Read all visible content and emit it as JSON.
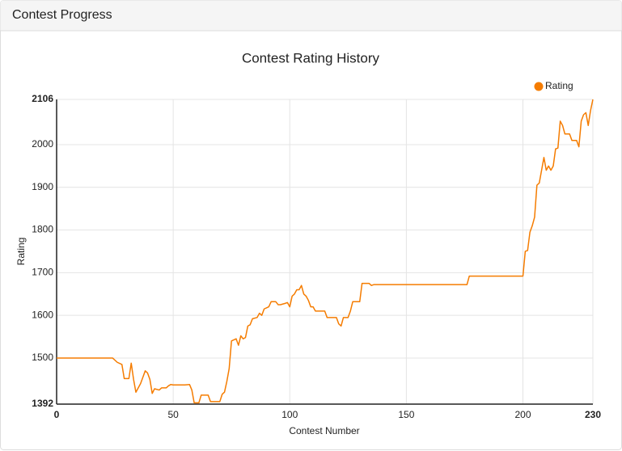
{
  "header": {
    "title": "Contest Progress"
  },
  "chart_data": {
    "type": "line",
    "title": "Contest Rating History",
    "x_label": "Contest Number",
    "y_label": "Rating",
    "x": [
      0,
      24,
      26,
      28,
      29,
      31,
      32,
      33,
      34,
      36,
      37,
      38,
      39,
      40,
      41,
      42,
      44,
      45,
      47,
      48,
      49,
      50,
      55,
      57,
      58,
      59,
      61,
      62,
      65,
      66,
      70,
      71,
      72,
      73,
      74,
      75,
      77,
      78,
      79,
      80,
      81,
      82,
      83,
      84,
      86,
      87,
      88,
      89,
      91,
      92,
      94,
      95,
      96,
      98,
      99,
      100,
      101,
      102,
      103,
      104,
      105,
      106,
      107,
      108,
      109,
      110,
      111,
      115,
      116,
      120,
      121,
      122,
      123,
      125,
      126,
      127,
      130,
      131,
      134,
      135,
      136,
      176,
      177,
      200,
      201,
      202,
      203,
      204,
      205,
      206,
      207,
      208,
      209,
      210,
      211,
      212,
      213,
      214,
      215,
      216,
      217,
      218,
      220,
      221,
      223,
      224,
      225,
      226,
      227,
      228,
      229,
      230
    ],
    "series": [
      {
        "name": "Rating",
        "color": "#f57c00",
        "values": [
          1500,
          1500,
          1490,
          1485,
          1452,
          1452,
          1488,
          1450,
          1420,
          1440,
          1455,
          1470,
          1465,
          1450,
          1417,
          1428,
          1425,
          1430,
          1430,
          1435,
          1438,
          1437,
          1437,
          1438,
          1425,
          1395,
          1395,
          1413,
          1413,
          1398,
          1398,
          1415,
          1420,
          1445,
          1475,
          1540,
          1545,
          1530,
          1552,
          1545,
          1548,
          1575,
          1578,
          1592,
          1595,
          1605,
          1600,
          1615,
          1620,
          1632,
          1632,
          1625,
          1625,
          1628,
          1630,
          1620,
          1645,
          1650,
          1660,
          1660,
          1670,
          1650,
          1645,
          1635,
          1620,
          1620,
          1610,
          1610,
          1595,
          1595,
          1580,
          1575,
          1595,
          1595,
          1610,
          1632,
          1632,
          1675,
          1675,
          1670,
          1672,
          1672,
          1692,
          1692,
          1750,
          1752,
          1795,
          1810,
          1830,
          1905,
          1910,
          1940,
          1970,
          1940,
          1950,
          1940,
          1950,
          1990,
          1992,
          2055,
          2045,
          2025,
          2025,
          2010,
          2010,
          1995,
          2055,
          2070,
          2075,
          2045,
          2080,
          2106
        ]
      }
    ],
    "xlim": [
      0,
      230
    ],
    "ylim": [
      1392,
      2106
    ],
    "xticks": [
      0,
      50,
      100,
      150,
      200,
      230
    ],
    "yticks": [
      1392,
      1500,
      1600,
      1700,
      1800,
      1900,
      2000,
      2106
    ],
    "grid": true,
    "legend": "top-right"
  }
}
